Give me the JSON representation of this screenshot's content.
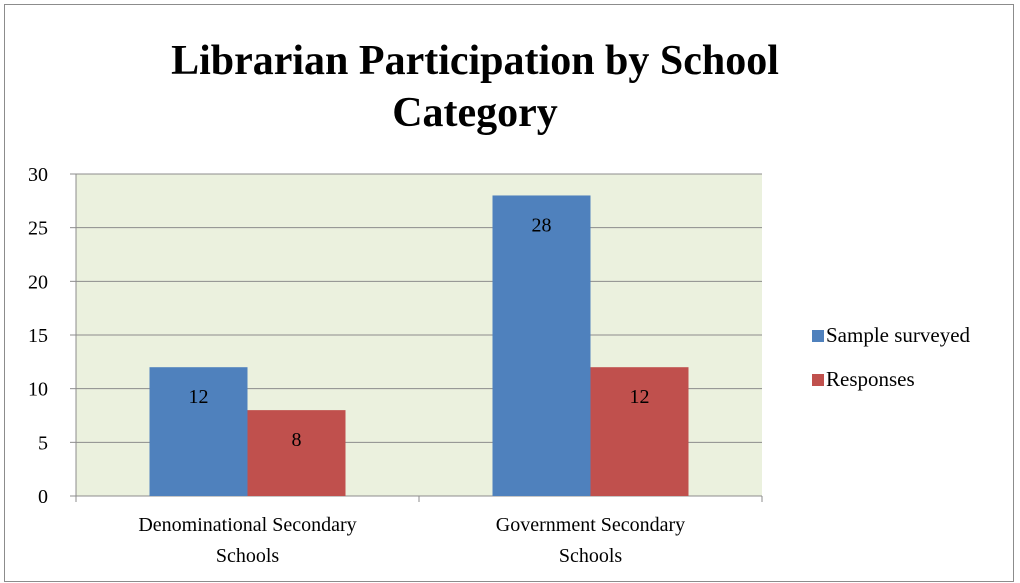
{
  "chart_data": {
    "type": "bar",
    "title_lines": [
      "Librarian Participation by School",
      "Category"
    ],
    "categories": [
      [
        "Denominational Secondary",
        "Schools"
      ],
      [
        "Government Secondary",
        "Schools"
      ]
    ],
    "series": [
      {
        "name": "Sample surveyed",
        "values": [
          12,
          28
        ],
        "color": "#4f81bd"
      },
      {
        "name": "Responses",
        "values": [
          8,
          12
        ],
        "color": "#c0504d"
      }
    ],
    "ylim": [
      0,
      30
    ],
    "yticks": [
      0,
      5,
      10,
      15,
      20,
      25,
      30
    ],
    "grid": true,
    "plot_background": "#ebf1de",
    "legend_position": "right"
  }
}
